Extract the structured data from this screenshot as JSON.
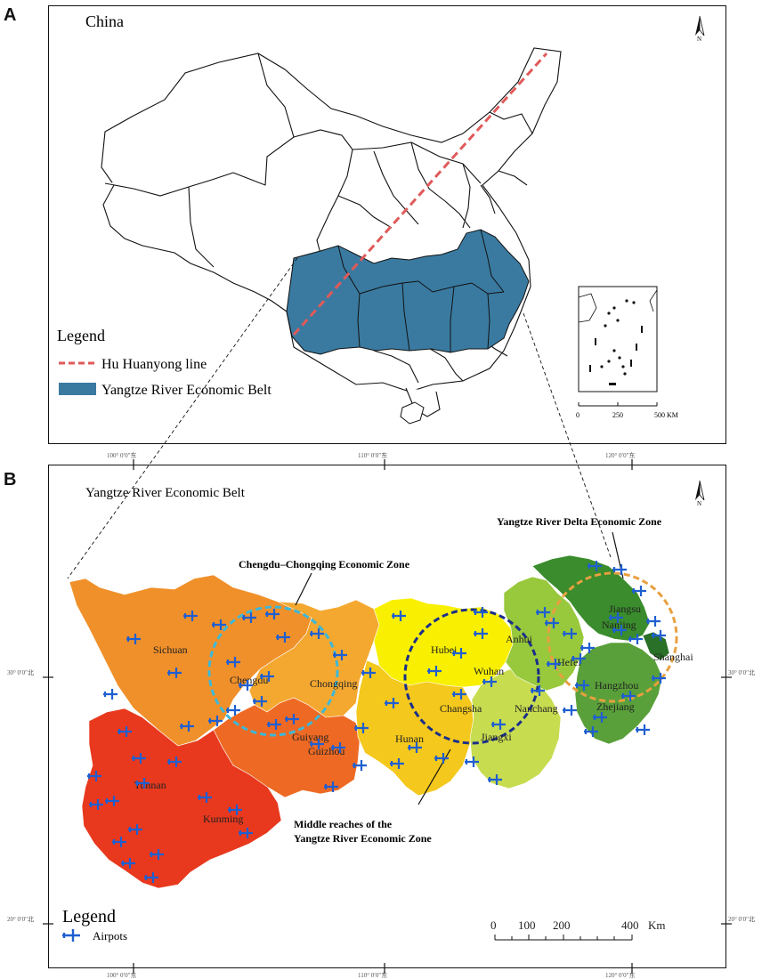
{
  "panel_a": {
    "letter": "A",
    "title": "China",
    "north": "N",
    "legend": {
      "title": "Legend",
      "items": [
        {
          "label": "Hu Huanyong line",
          "color": "#e05a5a"
        },
        {
          "label": "Yangtze River Economic Belt",
          "color": "#3a7aa0"
        }
      ]
    },
    "inset_scale": [
      "0",
      "250",
      "500 KM"
    ]
  },
  "panel_b": {
    "letter": "B",
    "title": "Yangtze River Economic Belt",
    "north": "N",
    "top_ticks": [
      "100° 0′0″东",
      "110° 0′0″东",
      "120° 0′0″东"
    ],
    "bottom_ticks": [
      "100° 0′0″东",
      "110° 0′0″东",
      "120° 0′0″东"
    ],
    "left_ticks": [
      "30° 0′0″北",
      "20° 0′0″北"
    ],
    "right_ticks": [
      "30° 0′0″北",
      "20° 0′0″北"
    ],
    "zones": [
      {
        "label": "Chengdu–Chongqing Economic Zone",
        "color": "#3cb8d8"
      },
      {
        "label": "Middle reaches of the",
        "label2": "Yangtze River Economic Zone",
        "color": "#1a2f8a"
      },
      {
        "label": "Yangtze River Delta Economic Zone",
        "color": "#e8a040"
      }
    ],
    "provinces": [
      "Sichuan",
      "Chongqing",
      "Yunnan",
      "Guizhou",
      "Hubei",
      "Hunan",
      "Jiangxi",
      "Anhui",
      "Jiangsu",
      "Zhejiang",
      "Shanghai"
    ],
    "cities": [
      "Chengdu",
      "Guiyang",
      "Kunming",
      "Wuhan",
      "Changsha",
      "Nanchang",
      "Hefei",
      "Nanjing",
      "Hangzhou"
    ],
    "legend": {
      "title": "Legend",
      "airport_label": "Airpots"
    },
    "scale": {
      "labels": [
        "0",
        "100",
        "200",
        "400"
      ],
      "unit": "Km"
    },
    "colors": {
      "sichuan": "#f0902a",
      "chongqing": "#f4a830",
      "yunnan": "#e8391e",
      "guizhou": "#ee6a24",
      "hubei": "#f8f000",
      "hunan": "#f4c81c",
      "jiangxi": "#c8dc50",
      "anhui": "#98c83c",
      "jiangsu": "#3a8c2c",
      "zhejiang": "#5aa03a",
      "shanghai": "#2a7028",
      "airport": "#1f5fd0"
    }
  }
}
